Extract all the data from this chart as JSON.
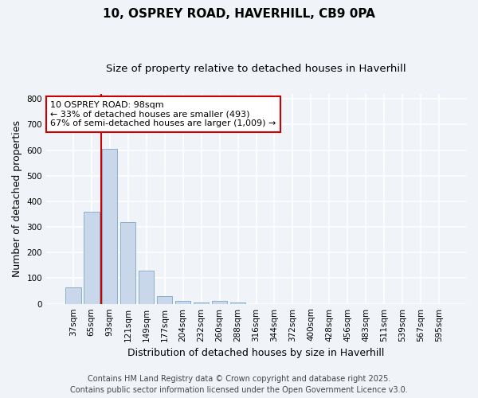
{
  "title_line1": "10, OSPREY ROAD, HAVERHILL, CB9 0PA",
  "title_line2": "Size of property relative to detached houses in Haverhill",
  "xlabel": "Distribution of detached houses by size in Haverhill",
  "ylabel": "Number of detached properties",
  "categories": [
    "37sqm",
    "65sqm",
    "93sqm",
    "121sqm",
    "149sqm",
    "177sqm",
    "204sqm",
    "232sqm",
    "260sqm",
    "288sqm",
    "316sqm",
    "344sqm",
    "372sqm",
    "400sqm",
    "428sqm",
    "456sqm",
    "483sqm",
    "511sqm",
    "539sqm",
    "567sqm",
    "595sqm"
  ],
  "values": [
    65,
    360,
    605,
    320,
    130,
    30,
    10,
    5,
    10,
    5,
    0,
    0,
    0,
    0,
    0,
    0,
    0,
    0,
    0,
    0,
    0
  ],
  "bar_color": "#c8d8ea",
  "bar_edge_color": "#8ab0cc",
  "background_color": "#f0f4f8",
  "plot_bg_color": "#f0f4f8",
  "grid_color": "#ffffff",
  "annotation_text_line1": "10 OSPREY ROAD: 98sqm",
  "annotation_text_line2": "← 33% of detached houses are smaller (493)",
  "annotation_text_line3": "67% of semi-detached houses are larger (1,009) →",
  "annotation_box_color": "#ffffff",
  "annotation_box_edge_color": "#cc0000",
  "vline_color": "#cc0000",
  "vline_x_index": 2,
  "vline_x_offset": 0.05,
  "ylim": [
    0,
    820
  ],
  "yticks": [
    0,
    100,
    200,
    300,
    400,
    500,
    600,
    700,
    800
  ],
  "footer_line1": "Contains HM Land Registry data © Crown copyright and database right 2025.",
  "footer_line2": "Contains public sector information licensed under the Open Government Licence v3.0.",
  "title_fontsize": 11,
  "subtitle_fontsize": 9.5,
  "axis_label_fontsize": 9,
  "tick_fontsize": 7.5,
  "annotation_fontsize": 8,
  "footer_fontsize": 7
}
